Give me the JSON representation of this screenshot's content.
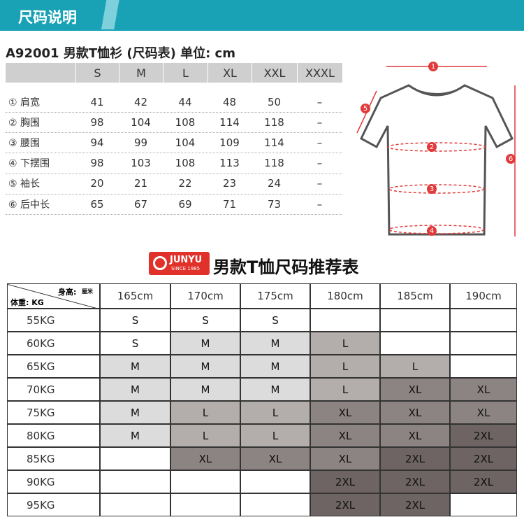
{
  "header": {
    "title": "尺码说明"
  },
  "product_title": "A92001  男款T恤衫 (尺码表) 单位: cm",
  "size_table": {
    "columns": [
      "S",
      "M",
      "L",
      "XL",
      "XXL",
      "XXXL"
    ],
    "rows": [
      {
        "label": "① 肩宽",
        "values": [
          41,
          42,
          44,
          48,
          50,
          "–"
        ]
      },
      {
        "label": "② 胸围",
        "values": [
          98,
          104,
          108,
          114,
          118,
          "–"
        ]
      },
      {
        "label": "③ 腰围",
        "values": [
          94,
          99,
          104,
          109,
          114,
          "–"
        ]
      },
      {
        "label": "④ 下摆围",
        "values": [
          98,
          103,
          108,
          113,
          118,
          "–"
        ]
      },
      {
        "label": "⑤ 袖长",
        "values": [
          20,
          21,
          22,
          23,
          24,
          "–"
        ]
      },
      {
        "label": "⑥ 后中长",
        "values": [
          65,
          67,
          69,
          71,
          73,
          "–"
        ]
      }
    ]
  },
  "diagram": {
    "markers": [
      "1",
      "2",
      "3",
      "4",
      "5",
      "6"
    ]
  },
  "logo": {
    "name": "JUNYU",
    "since": "SINCE 1985"
  },
  "recommend_title": "男款T恤尺码推荐表",
  "recommend_table": {
    "height_label": "身高:",
    "height_unit": "厘米",
    "weight_label": "体重: KG",
    "heights": [
      "165cm",
      "170cm",
      "175cm",
      "180cm",
      "185cm",
      "190cm"
    ],
    "shades": {
      "M": "#dcdcdc",
      "L": "#b3adac",
      "XL": "#8c8483",
      "2XL": "#6e6464"
    },
    "rows": [
      {
        "weight": "55KG",
        "sizes": [
          "S",
          "S",
          "S",
          null,
          null,
          null
        ]
      },
      {
        "weight": "60KG",
        "sizes": [
          "S",
          "M",
          "M",
          "L",
          null,
          null
        ]
      },
      {
        "weight": "65KG",
        "sizes": [
          "M",
          "M",
          "M",
          "L",
          "L",
          null
        ]
      },
      {
        "weight": "70KG",
        "sizes": [
          "M",
          "M",
          "M",
          "L",
          "XL",
          "XL"
        ]
      },
      {
        "weight": "75KG",
        "sizes": [
          "M",
          "L",
          "L",
          "XL",
          "XL",
          "XL"
        ]
      },
      {
        "weight": "80KG",
        "sizes": [
          "M",
          "L",
          "L",
          "XL",
          "XL",
          "2XL"
        ]
      },
      {
        "weight": "85KG",
        "sizes": [
          null,
          "XL",
          "XL",
          "XL",
          "2XL",
          "2XL"
        ]
      },
      {
        "weight": "90KG",
        "sizes": [
          null,
          null,
          null,
          "2XL",
          "2XL",
          "2XL"
        ]
      },
      {
        "weight": "95KG",
        "sizes": [
          null,
          null,
          null,
          "2XL",
          "2XL",
          null
        ]
      }
    ]
  }
}
